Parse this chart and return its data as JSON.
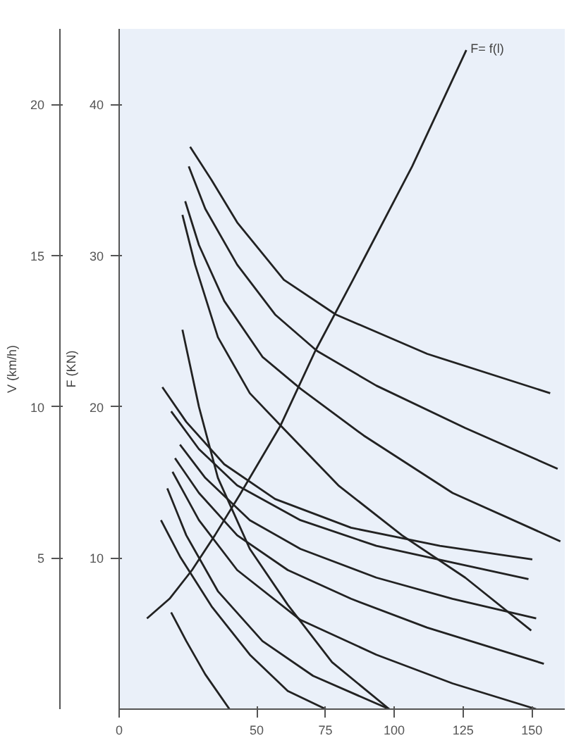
{
  "chart_data": {
    "type": "line",
    "xlim": [
      0,
      162
    ],
    "xticks": [
      0,
      50,
      75,
      100,
      125,
      150
    ],
    "ylim": [
      0,
      45
    ],
    "yticks": [
      10,
      20,
      30,
      40
    ],
    "y2lim": [
      0,
      22.5
    ],
    "y2ticks": [
      5,
      10,
      15,
      20
    ],
    "ylabel": "F (KN)",
    "y2label": "V (km/h)",
    "grid": false,
    "marker": "none",
    "line_style": "solid",
    "annotations": [
      {
        "text": "F= f(l)",
        "x": 126.2,
        "y": 43.6
      }
    ],
    "series": [
      {
        "color": "#222222",
        "x": [
          10.1,
          18.3,
          26.5,
          34.8,
          43.9,
          58.5,
          71.3,
          85.0,
          106.5,
          126.2
        ],
        "values": [
          6.0,
          7.3,
          9.2,
          11.5,
          14.2,
          18.7,
          23.7,
          28.4,
          35.9,
          43.6
        ]
      },
      {
        "color": "#222222",
        "x": [
          25.8,
          33.6,
          42.9,
          59.9,
          78.8,
          112.0,
          156.7
        ],
        "values": [
          37.2,
          35.0,
          32.2,
          28.4,
          26.1,
          23.5,
          20.9
        ]
      },
      {
        "color": "#222222",
        "x": [
          25.3,
          31.3,
          42.9,
          56.7,
          71.9,
          93.5,
          125.8,
          159.4
        ],
        "values": [
          35.9,
          33.1,
          29.4,
          26.1,
          23.7,
          21.4,
          18.6,
          15.9
        ]
      },
      {
        "color": "#222222",
        "x": [
          24.0,
          29.0,
          38.2,
          52.1,
          65.9,
          88.9,
          121.2,
          160.4
        ],
        "values": [
          33.6,
          30.7,
          27.0,
          23.3,
          21.2,
          18.1,
          14.3,
          11.1
        ]
      },
      {
        "color": "#222222",
        "x": [
          23.0,
          27.6,
          35.9,
          47.5,
          59.0,
          79.7,
          102.8,
          125.8,
          149.8
        ],
        "values": [
          32.7,
          29.4,
          24.6,
          20.9,
          18.7,
          14.8,
          11.5,
          8.7,
          5.2
        ]
      },
      {
        "color": "#222222",
        "x": [
          23.0,
          29.0,
          35.9,
          47.5,
          61.3,
          77.4,
          98.2
        ],
        "values": [
          25.1,
          20.0,
          15.3,
          10.6,
          6.9,
          3.1,
          0
        ]
      },
      {
        "color": "#222222",
        "x": [
          15.7,
          24.4,
          38.2,
          56.7,
          84.3,
          116.6,
          150.2
        ],
        "values": [
          21.3,
          19.0,
          16.2,
          13.9,
          12.0,
          10.8,
          9.9
        ]
      },
      {
        "color": "#222222",
        "x": [
          18.9,
          29.0,
          42.9,
          65.9,
          93.5,
          121.2,
          148.8
        ],
        "values": [
          19.7,
          17.2,
          14.8,
          12.5,
          10.8,
          9.7,
          8.6
        ]
      },
      {
        "color": "#222222",
        "x": [
          22.1,
          31.3,
          47.5,
          65.9,
          93.5,
          121.2,
          151.6
        ],
        "values": [
          17.5,
          15.3,
          12.5,
          10.6,
          8.7,
          7.3,
          6.0
        ]
      },
      {
        "color": "#222222",
        "x": [
          20.3,
          29.0,
          42.9,
          61.3,
          84.3,
          111.9,
          154.4
        ],
        "values": [
          16.6,
          14.3,
          11.5,
          9.2,
          7.3,
          5.4,
          3.0
        ]
      },
      {
        "color": "#222222",
        "x": [
          19.4,
          29.0,
          42.9,
          65.9,
          93.5,
          121.2,
          151.6
        ],
        "values": [
          15.7,
          12.5,
          9.2,
          5.9,
          3.6,
          1.7,
          0
        ]
      },
      {
        "color": "#222222",
        "x": [
          17.5,
          24.4,
          35.9,
          52.1,
          70.5,
          98.2
        ],
        "values": [
          14.6,
          11.5,
          7.8,
          4.5,
          2.2,
          0
        ]
      },
      {
        "color": "#222222",
        "x": [
          15.2,
          22.1,
          33.6,
          47.5,
          61.3,
          75.1
        ],
        "values": [
          12.5,
          10.1,
          6.8,
          3.6,
          1.2,
          0
        ]
      },
      {
        "color": "#222222",
        "x": [
          18.9,
          24.4,
          31.3,
          40.1
        ],
        "values": [
          6.4,
          4.5,
          2.3,
          0
        ]
      }
    ]
  }
}
